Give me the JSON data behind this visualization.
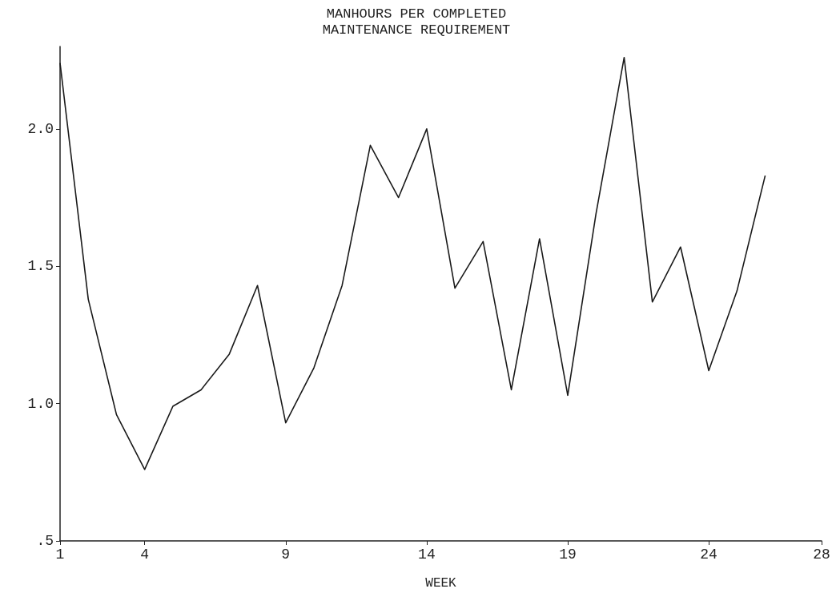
{
  "chart_data": {
    "type": "line",
    "title": "MANHOURS PER COMPLETED\nMAINTENANCE REQUIREMENT",
    "xlabel": "WEEK",
    "x": [
      1,
      2,
      3,
      4,
      5,
      6,
      7,
      8,
      9,
      10,
      11,
      12,
      13,
      14,
      15,
      16,
      17,
      18,
      19,
      20,
      21,
      22,
      23,
      24,
      25,
      26
    ],
    "series": [
      {
        "color": "#1a1a1a",
        "values": [
          2.24,
          1.38,
          0.96,
          0.76,
          0.99,
          1.05,
          1.18,
          1.43,
          0.93,
          1.13,
          1.43,
          1.94,
          1.75,
          2.0,
          1.42,
          1.59,
          1.05,
          1.6,
          1.03,
          1.69,
          2.26,
          1.37,
          1.57,
          1.12,
          1.41,
          1.83
        ]
      }
    ],
    "xlim": [
      1,
      28
    ],
    "xticks": [
      1,
      4,
      9,
      14,
      19,
      24,
      28
    ],
    "ylim": [
      0.5,
      2.3
    ],
    "yticks": [
      {
        "value": 0.5,
        "label": ".5"
      },
      {
        "value": 1,
        "label": "1.0"
      },
      {
        "value": 1.5,
        "label": "1.5"
      },
      {
        "value": 2,
        "label": "2.0"
      }
    ],
    "grid": false,
    "marker": "none",
    "line_style": "solid"
  }
}
